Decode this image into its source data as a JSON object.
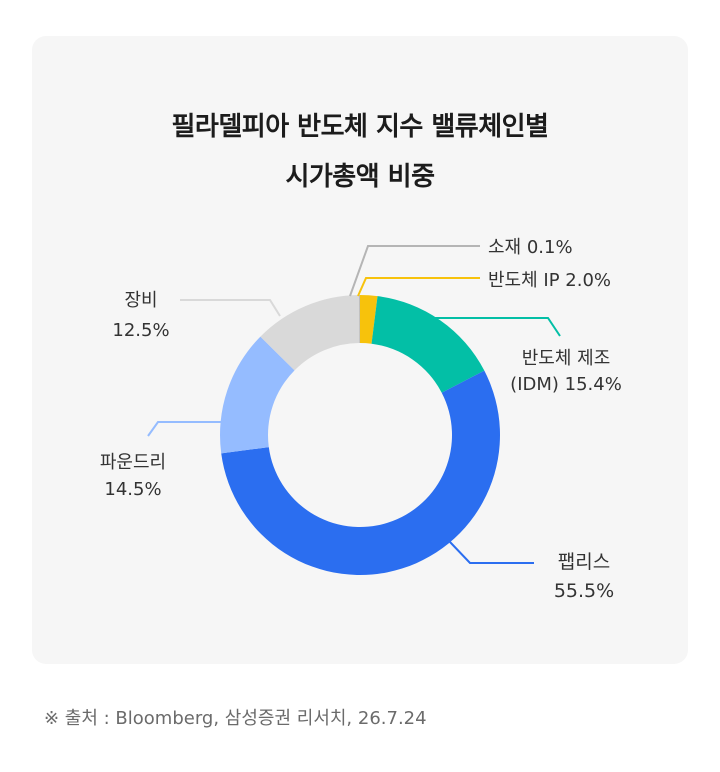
{
  "chart_data": {
    "type": "pie",
    "variant": "donut",
    "title_line1": "필라델피아 반도체 지수 밸류체인별",
    "title_line2": "시가총액 비중",
    "slices": [
      {
        "name": "반도체 IP",
        "label": "반도체 IP  2.0%",
        "value": 2.0,
        "color": "#f7c20c"
      },
      {
        "name": "반도체 제조(IDM)",
        "label_line1": "반도체 제조",
        "label_line2": "(IDM) 15.4%",
        "value": 15.4,
        "color": "#03bfa6"
      },
      {
        "name": "팹리스",
        "label_line1": "팹리스",
        "label_line2": "55.5%",
        "value": 55.5,
        "color": "#2b6ef0"
      },
      {
        "name": "파운드리",
        "label_line1": "파운드리",
        "label_line2": "14.5%",
        "value": 14.5,
        "color": "#95bcff"
      },
      {
        "name": "장비",
        "label_line1": "장비",
        "label_line2": "12.5%",
        "value": 12.5,
        "color": "#d9d9d9"
      },
      {
        "name": "소재",
        "label": "소재 0.1%",
        "value": 0.1,
        "color": "#b5b5b5"
      }
    ]
  },
  "source": "※ 출처 : Bloomberg, 삼성증권 리서치, 26.7.24"
}
